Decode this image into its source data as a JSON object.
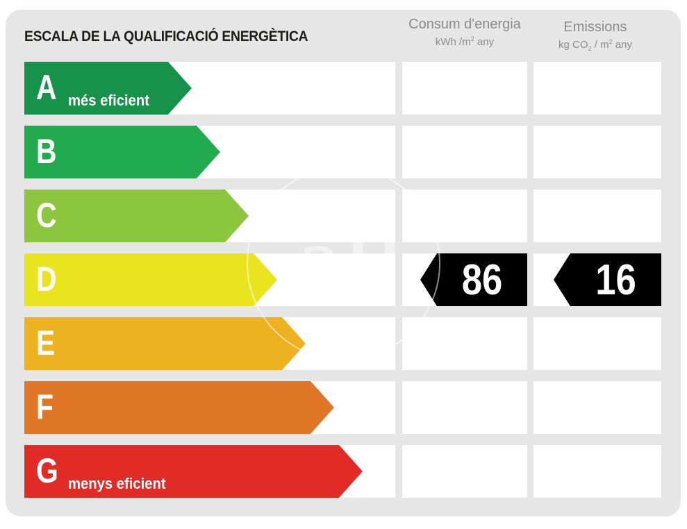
{
  "title": "ESCALA DE LA QUALIFICACIÓ ENERGÈTICA",
  "columns": {
    "consumption": {
      "title": "Consum d'energia",
      "unit_main": "kWh /m",
      "unit_sup": "2",
      "unit_tail": "  any"
    },
    "emissions": {
      "title": "Emissions",
      "unit_a": "kg CO",
      "unit_sub": "2",
      "unit_b": " / m",
      "unit_sup": "2",
      "unit_tail": "  any"
    }
  },
  "watermark": "aP",
  "chart_data": {
    "type": "table",
    "classes": [
      {
        "letter": "A",
        "label": "més eficient",
        "color": "#17924a"
      },
      {
        "letter": "B",
        "label": "",
        "color": "#21ab4e"
      },
      {
        "letter": "C",
        "label": "",
        "color": "#8cc63e"
      },
      {
        "letter": "D",
        "label": "",
        "color": "#e9e41e"
      },
      {
        "letter": "E",
        "label": "",
        "color": "#eeb11f"
      },
      {
        "letter": "F",
        "label": "",
        "color": "#e07726"
      },
      {
        "letter": "G",
        "label": "menys eficient",
        "color": "#e02b27"
      }
    ],
    "rating": "D",
    "consumption_value": "86",
    "emissions_value": "16"
  }
}
